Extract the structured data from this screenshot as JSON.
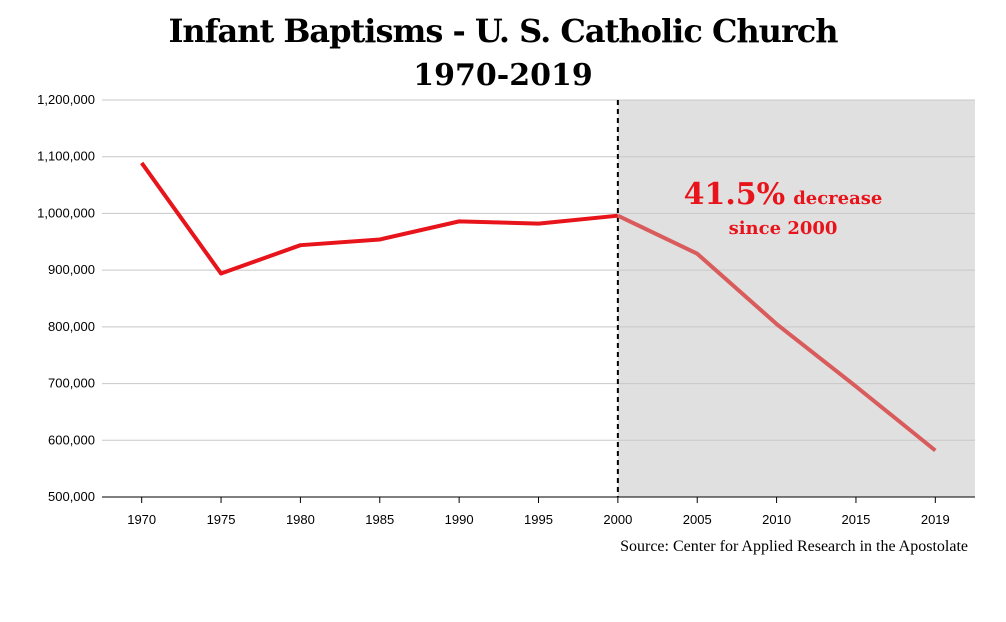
{
  "chart_data": {
    "type": "line",
    "title": "Infant Baptisms - U. S. Catholic Church",
    "subtitle": "1970-2019",
    "x": [
      "1970",
      "1975",
      "1980",
      "1985",
      "1990",
      "1995",
      "2000",
      "2005",
      "2010",
      "2015",
      "2019"
    ],
    "series": [
      {
        "values": [
          1089000,
          894000,
          944000,
          954000,
          986000,
          982000,
          996000,
          929000,
          805000,
          695000,
          582000
        ]
      }
    ],
    "ylim": [
      500000,
      1200000
    ],
    "yticks": [
      "1,200,000",
      "1,100,000",
      "1,000,000",
      "900,000",
      "800,000",
      "700,000",
      "600,000",
      "500,000"
    ],
    "grid": "horizontal",
    "highlight_region": {
      "from": "2000",
      "to": "2019",
      "color": "#e0e0e0"
    },
    "marker_line": {
      "at": "2000",
      "style": "dashed"
    },
    "colors": {
      "line": "#e8141b",
      "line_after_2000": "#d95b5b",
      "annotation": "#e8141b"
    },
    "annotation": {
      "big": "41.5%",
      "small1": "decrease",
      "small2": "since 2000"
    },
    "source": "Source: Center for Applied Research in the Apostolate"
  }
}
